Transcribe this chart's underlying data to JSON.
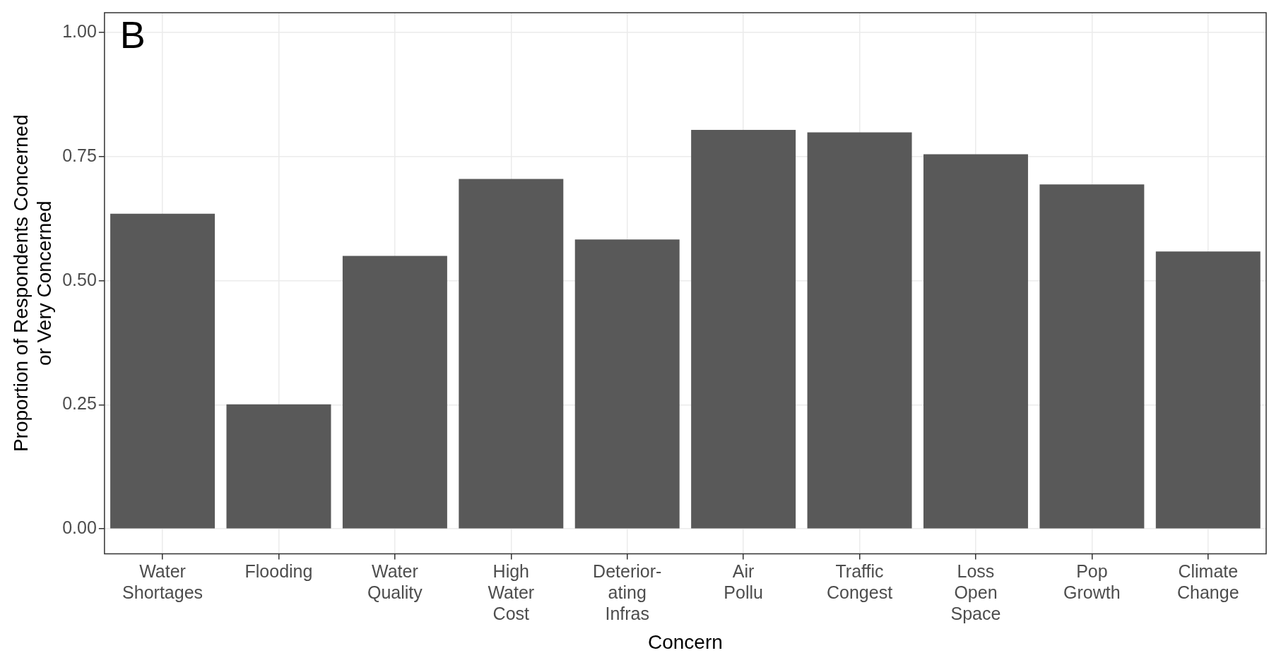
{
  "chart_data": {
    "type": "bar",
    "categories": [
      "Water\nShortages",
      "Flooding",
      "Water\nQuality",
      "High\nWater\nCost",
      "Deterior-\nating\nInfras",
      "Air\nPollu",
      "Traffic\nCongest",
      "Loss\nOpen\nSpace",
      "Pop\nGrowth",
      "Climate\nChange"
    ],
    "values": [
      0.635,
      0.251,
      0.55,
      0.705,
      0.583,
      0.804,
      0.799,
      0.755,
      0.694,
      0.559
    ],
    "color": "#595959",
    "xlabel": "Concern",
    "ylabel": "Proportion of Respondents Concerned\nor Very Concerned",
    "ylim": [
      -0.05,
      1.04
    ],
    "yticks": [
      {
        "value": 0,
        "label": "0.00"
      },
      {
        "value": 0.25,
        "label": "0.25"
      },
      {
        "value": 0.5,
        "label": "0.50"
      },
      {
        "value": 0.75,
        "label": "0.75"
      },
      {
        "value": 1,
        "label": "1.00"
      }
    ],
    "grid": true,
    "annotations": [
      "B"
    ]
  }
}
